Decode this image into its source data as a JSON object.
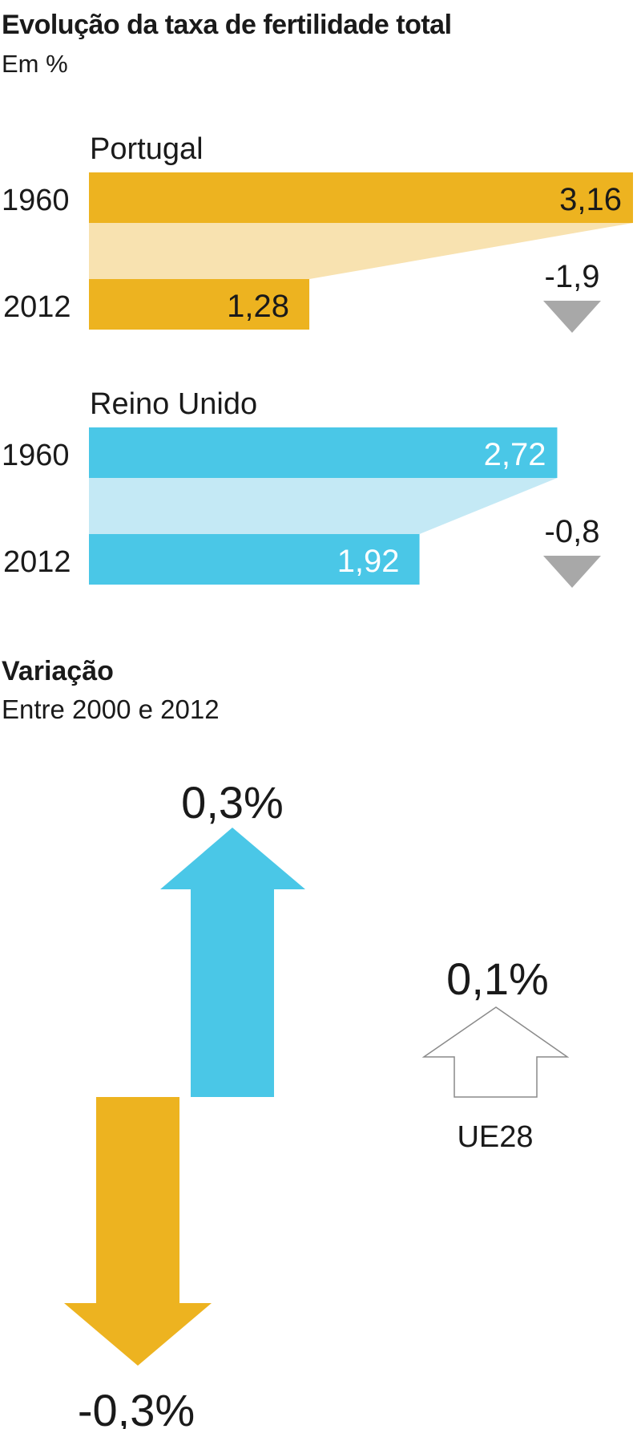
{
  "header": {
    "title": "Evolução da taxa de fertilidade total",
    "subtitle": "Em %"
  },
  "colors": {
    "portugal": "#EDB320",
    "portugal_light": "#F8E2B0",
    "uk": "#4AC7E7",
    "uk_light": "#C4E9F5",
    "decrease_arrow": "#A8A8A8",
    "outline": "#8A8A8A"
  },
  "chart_data": [
    {
      "type": "bar",
      "title": "Evolução da taxa de fertilidade total",
      "subtitle": "Em %",
      "categories": [
        "1960",
        "2012"
      ],
      "xlim": [
        0,
        3.16
      ],
      "series": [
        {
          "name": "Portugal",
          "values": [
            3.16,
            1.28
          ],
          "value_labels": [
            "3,16",
            "1,28"
          ],
          "change_label": "-1,9",
          "color_key": "portugal"
        },
        {
          "name": "Reino Unido",
          "values": [
            2.72,
            1.92
          ],
          "value_labels": [
            "2,72",
            "1,92"
          ],
          "change_label": "-0,8",
          "color_key": "uk"
        }
      ]
    },
    {
      "type": "bar",
      "title": "Variação",
      "subtitle": "Entre 2000 e 2012",
      "items": [
        {
          "value": -0.3,
          "label": "-0,3%",
          "color_key": "portugal"
        },
        {
          "value": 0.3,
          "label": "0,3%",
          "color_key": "uk"
        },
        {
          "value": 0.1,
          "label": "0,1%",
          "name": "UE28",
          "color_key": "outline"
        }
      ]
    }
  ]
}
